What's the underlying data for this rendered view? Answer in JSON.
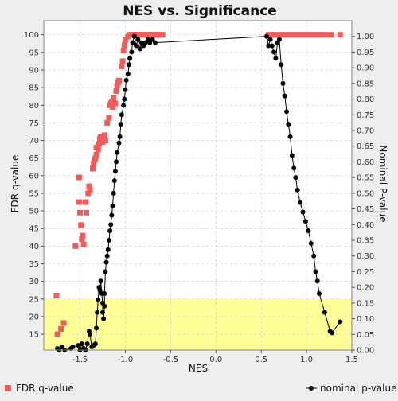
{
  "chart_data": {
    "type": "scatter",
    "title": "NES vs. Significance",
    "xlabel": "NES",
    "ylabel_left": "FDR q-value",
    "ylabel_right": "Nominal P-value",
    "xlim": [
      -1.9,
      1.5
    ],
    "ylim_left": [
      10.5,
      104
    ],
    "ylim_right": [
      0.0,
      1.05
    ],
    "x_ticks": [
      -1.5,
      -1.0,
      -0.5,
      0.0,
      0.5,
      1.0,
      1.5
    ],
    "x_tick_labels": [
      "-1.5",
      "-1.0",
      "-0.5",
      "0.0",
      "0.5",
      "1.0",
      "1.5"
    ],
    "y_left_ticks": [
      15,
      20,
      25,
      30,
      35,
      40,
      45,
      50,
      55,
      60,
      65,
      70,
      75,
      80,
      85,
      90,
      95,
      100
    ],
    "y_left_tick_labels": [
      "15",
      "20",
      "25",
      "30",
      "35",
      "40",
      "45",
      "50",
      "55",
      "60",
      "65",
      "70",
      "75",
      "80",
      "85",
      "90",
      "95",
      "100"
    ],
    "y_right_ticks": [
      0.0,
      0.05,
      0.1,
      0.15,
      0.2,
      0.25,
      0.3,
      0.35,
      0.4,
      0.45,
      0.5,
      0.55,
      0.6,
      0.65,
      0.7,
      0.75,
      0.8,
      0.85,
      0.9,
      0.95,
      1.0
    ],
    "y_right_tick_labels": [
      "0.00",
      "0.05",
      "0.10",
      "0.15",
      "0.20",
      "0.25",
      "0.30",
      "0.35",
      "0.40",
      "0.45",
      "0.50",
      "0.55",
      "0.60",
      "0.65",
      "0.70",
      "0.75",
      "0.80",
      "0.85",
      "0.90",
      "0.95",
      "1.00"
    ],
    "highlight_band": {
      "y_from": 10.5,
      "y_to": 25,
      "color": "#ffff99"
    },
    "grid": true,
    "legend": "bottom",
    "series": [
      {
        "name": "FDR q-value",
        "marker": "square",
        "color": "#f05b5b",
        "axis": "left",
        "points": [
          [
            -1.76,
            26
          ],
          [
            -1.75,
            15
          ],
          [
            -1.71,
            16.5
          ],
          [
            -1.68,
            18.2
          ],
          [
            -1.55,
            40
          ],
          [
            -1.51,
            59.5
          ],
          [
            -1.51,
            52.5
          ],
          [
            -1.5,
            49.5
          ],
          [
            -1.49,
            46
          ],
          [
            -1.48,
            42
          ],
          [
            -1.47,
            43
          ],
          [
            -1.46,
            40.5
          ],
          [
            -1.44,
            52.5
          ],
          [
            -1.43,
            49.5
          ],
          [
            -1.41,
            55
          ],
          [
            -1.4,
            57
          ],
          [
            -1.39,
            56
          ],
          [
            -1.36,
            62
          ],
          [
            -1.35,
            63.5
          ],
          [
            -1.34,
            64.5
          ],
          [
            -1.33,
            65
          ],
          [
            -1.32,
            66
          ],
          [
            -1.32,
            68
          ],
          [
            -1.3,
            67.5
          ],
          [
            -1.29,
            69
          ],
          [
            -1.28,
            70.5
          ],
          [
            -1.27,
            71
          ],
          [
            -1.25,
            69.5
          ],
          [
            -1.23,
            71.5
          ],
          [
            -1.22,
            70
          ],
          [
            -1.2,
            75
          ],
          [
            -1.18,
            76.5
          ],
          [
            -1.17,
            80
          ],
          [
            -1.16,
            80.5
          ],
          [
            -1.15,
            81
          ],
          [
            -1.14,
            79.5
          ],
          [
            -1.13,
            82
          ],
          [
            -1.11,
            80.5
          ],
          [
            -1.1,
            84
          ],
          [
            -1.09,
            85.5
          ],
          [
            -1.08,
            86.5
          ],
          [
            -1.07,
            87
          ],
          [
            -1.04,
            91
          ],
          [
            -1.03,
            92.5
          ],
          [
            -1.02,
            95.5
          ],
          [
            -1.01,
            97
          ],
          [
            -1.0,
            98.5
          ],
          [
            -0.97,
            99.5
          ],
          [
            -0.95,
            100
          ],
          [
            -0.93,
            100
          ],
          [
            -0.91,
            100
          ],
          [
            -0.89,
            100
          ],
          [
            -0.87,
            100
          ],
          [
            -0.85,
            100
          ],
          [
            -0.83,
            100
          ],
          [
            -0.81,
            100
          ],
          [
            -0.79,
            100
          ],
          [
            -0.77,
            100
          ],
          [
            -0.75,
            100
          ],
          [
            -0.73,
            100
          ],
          [
            -0.71,
            100
          ],
          [
            -0.69,
            100
          ],
          [
            -0.67,
            100
          ],
          [
            -0.65,
            100
          ],
          [
            -0.63,
            100
          ],
          [
            -0.61,
            100
          ],
          [
            -0.59,
            100
          ],
          [
            0.58,
            100
          ],
          [
            0.61,
            100
          ],
          [
            0.64,
            100
          ],
          [
            0.67,
            100
          ],
          [
            0.7,
            100
          ],
          [
            0.73,
            100
          ],
          [
            0.76,
            100
          ],
          [
            0.79,
            100
          ],
          [
            0.82,
            100
          ],
          [
            0.85,
            100
          ],
          [
            0.88,
            100
          ],
          [
            0.91,
            100
          ],
          [
            0.94,
            100
          ],
          [
            0.97,
            100
          ],
          [
            1.0,
            100
          ],
          [
            1.03,
            100
          ],
          [
            1.06,
            100
          ],
          [
            1.09,
            100
          ],
          [
            1.12,
            100
          ],
          [
            1.15,
            100
          ],
          [
            1.18,
            100
          ],
          [
            1.21,
            100
          ],
          [
            1.27,
            100
          ],
          [
            1.37,
            100
          ]
        ]
      },
      {
        "name": "nominal p-value",
        "marker": "circle-line",
        "color": "#000000",
        "axis": "right",
        "points": [
          [
            -1.75,
            0.005
          ],
          [
            -1.73,
            0.0
          ],
          [
            -1.7,
            0.01
          ],
          [
            -1.67,
            0.0
          ],
          [
            -1.6,
            0.005
          ],
          [
            -1.58,
            0.01
          ],
          [
            -1.52,
            0.015
          ],
          [
            -1.5,
            0.0
          ],
          [
            -1.48,
            0.02
          ],
          [
            -1.46,
            0.005
          ],
          [
            -1.44,
            0.0
          ],
          [
            -1.42,
            0.02
          ],
          [
            -1.4,
            0.06
          ],
          [
            -1.39,
            0.05
          ],
          [
            -1.37,
            0.01
          ],
          [
            -1.35,
            0.015
          ],
          [
            -1.33,
            0.02
          ],
          [
            -1.32,
            0.07
          ],
          [
            -1.31,
            0.12
          ],
          [
            -1.3,
            0.16
          ],
          [
            -1.29,
            0.2
          ],
          [
            -1.28,
            0.19
          ],
          [
            -1.27,
            0.22
          ],
          [
            -1.26,
            0.18
          ],
          [
            -1.25,
            0.15
          ],
          [
            -1.25,
            0.12
          ],
          [
            -1.24,
            0.1
          ],
          [
            -1.23,
            0.14
          ],
          [
            -1.23,
            0.18
          ],
          [
            -1.22,
            0.25
          ],
          [
            -1.21,
            0.28
          ],
          [
            -1.2,
            0.3
          ],
          [
            -1.19,
            0.32
          ],
          [
            -1.18,
            0.35
          ],
          [
            -1.17,
            0.38
          ],
          [
            -1.16,
            0.4
          ],
          [
            -1.15,
            0.43
          ],
          [
            -1.14,
            0.46
          ],
          [
            -1.13,
            0.5
          ],
          [
            -1.12,
            0.54
          ],
          [
            -1.11,
            0.57
          ],
          [
            -1.1,
            0.6
          ],
          [
            -1.09,
            0.63
          ],
          [
            -1.07,
            0.66
          ],
          [
            -1.06,
            0.68
          ],
          [
            -1.05,
            0.72
          ],
          [
            -1.04,
            0.75
          ],
          [
            -1.02,
            0.78
          ],
          [
            -1.01,
            0.8
          ],
          [
            -1.0,
            0.83
          ],
          [
            -0.99,
            0.86
          ],
          [
            -0.97,
            0.88
          ],
          [
            -0.96,
            0.91
          ],
          [
            -0.95,
            0.93
          ],
          [
            -0.93,
            0.95
          ],
          [
            -0.92,
            0.98
          ],
          [
            -0.9,
            1.0
          ],
          [
            -0.88,
            0.97
          ],
          [
            -0.86,
            0.99
          ],
          [
            -0.84,
            0.96
          ],
          [
            -0.82,
            0.98
          ],
          [
            -0.8,
            0.97
          ],
          [
            -0.78,
            0.98
          ],
          [
            -0.75,
            0.99
          ],
          [
            -0.73,
            0.98
          ],
          [
            -0.7,
            0.99
          ],
          [
            -0.67,
            0.98
          ],
          [
            0.56,
            1.0
          ],
          [
            0.58,
            0.97
          ],
          [
            0.6,
            0.99
          ],
          [
            0.62,
            0.97
          ],
          [
            0.64,
            0.95
          ],
          [
            0.66,
            0.93
          ],
          [
            0.68,
            0.98
          ],
          [
            0.7,
            0.99
          ],
          [
            0.72,
            0.91
          ],
          [
            0.74,
            0.85
          ],
          [
            0.76,
            0.81
          ],
          [
            0.78,
            0.76
          ],
          [
            0.8,
            0.72
          ],
          [
            0.82,
            0.68
          ],
          [
            0.84,
            0.62
          ],
          [
            0.86,
            0.58
          ],
          [
            0.88,
            0.55
          ],
          [
            0.9,
            0.51
          ],
          [
            0.93,
            0.47
          ],
          [
            0.96,
            0.44
          ],
          [
            0.99,
            0.41
          ],
          [
            1.02,
            0.38
          ],
          [
            1.05,
            0.34
          ],
          [
            1.08,
            0.3
          ],
          [
            1.1,
            0.25
          ],
          [
            1.12,
            0.22
          ],
          [
            1.14,
            0.18
          ],
          [
            1.2,
            0.12
          ],
          [
            1.26,
            0.06
          ],
          [
            1.28,
            0.055
          ],
          [
            1.37,
            0.09
          ]
        ]
      }
    ]
  }
}
